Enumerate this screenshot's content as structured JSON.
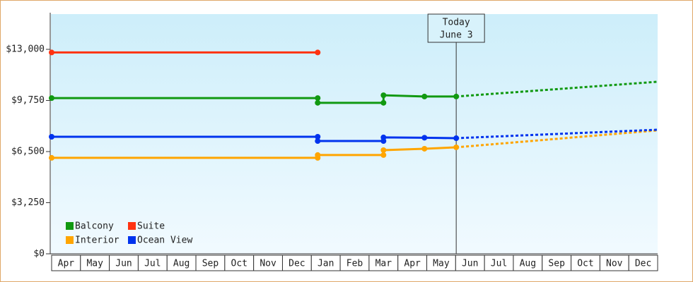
{
  "chart_data": {
    "type": "line",
    "categories": [
      "Apr",
      "May",
      "Jun",
      "Jul",
      "Aug",
      "Sep",
      "Oct",
      "Nov",
      "Dec",
      "Jan",
      "Feb",
      "Mar",
      "Apr",
      "May",
      "Jun",
      "Jul",
      "Aug",
      "Sep",
      "Oct",
      "Nov",
      "Dec"
    ],
    "xlim": [
      0,
      21
    ],
    "ylim": [
      0,
      15240
    ],
    "yticks": [
      {
        "value": 0,
        "label": "$0"
      },
      {
        "value": 3250,
        "label": "$3,250"
      },
      {
        "value": 6500,
        "label": "$6,500"
      },
      {
        "value": 9750,
        "label": "$9,750"
      },
      {
        "value": 13000,
        "label": "$13,000"
      }
    ],
    "today": {
      "x": 14.02,
      "label": [
        "Today",
        "June 3"
      ]
    },
    "forecast_x": [
      14.02,
      21
    ],
    "series": [
      {
        "name": "Balcony",
        "color": "#119911",
        "x": [
          0,
          9.22,
          9.22,
          11.5,
          11.5,
          12.92,
          14.02
        ],
        "values": [
          9900,
          9900,
          9600,
          9600,
          10080,
          10000,
          10000
        ],
        "forecast_values": [
          10000,
          10940
        ]
      },
      {
        "name": "Suite",
        "color": "#ff3311",
        "x": [
          0,
          9.22
        ],
        "values": [
          12800,
          12800
        ]
      },
      {
        "name": "Interior",
        "color": "#ffa500",
        "x": [
          0,
          9.22,
          9.22,
          11.5,
          11.5,
          12.92,
          14.02
        ],
        "values": [
          6100,
          6100,
          6280,
          6280,
          6590,
          6680,
          6770
        ],
        "forecast_values": [
          6770,
          7850
        ]
      },
      {
        "name": "Ocean View",
        "color": "#0033ee",
        "x": [
          0,
          9.22,
          9.22,
          11.5,
          11.5,
          12.92,
          14.02
        ],
        "values": [
          7440,
          7440,
          7170,
          7170,
          7400,
          7380,
          7350
        ],
        "forecast_values": [
          7350,
          7890
        ]
      }
    ]
  }
}
